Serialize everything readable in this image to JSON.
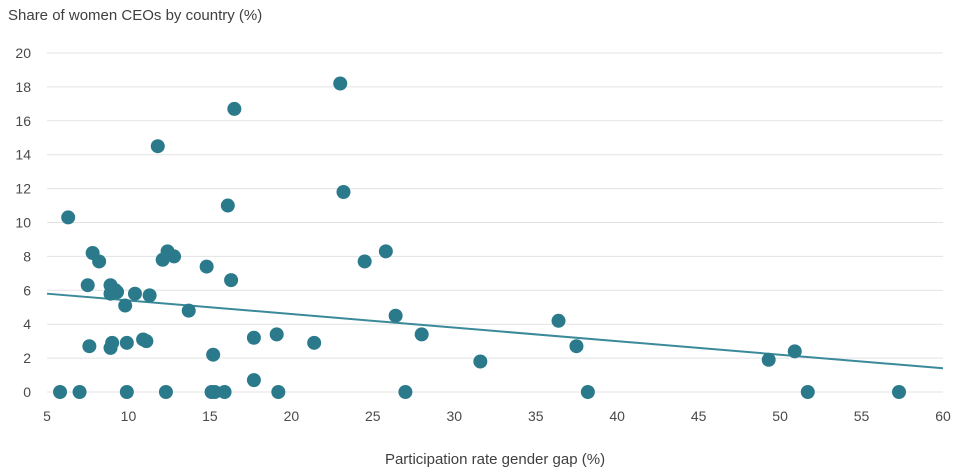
{
  "chart_data": {
    "type": "scatter",
    "title": "",
    "ylabel": "Share of women CEOs by country (%)",
    "xlabel": "Participation rate gender gap (%)",
    "xlim": [
      5,
      60
    ],
    "ylim": [
      0,
      20
    ],
    "xticks": [
      5,
      10,
      15,
      20,
      25,
      30,
      35,
      40,
      45,
      50,
      55,
      60
    ],
    "yticks": [
      0,
      2,
      4,
      6,
      8,
      10,
      12,
      14,
      16,
      18,
      20
    ],
    "grid": "horizontal",
    "legend": "none",
    "colors": {
      "points": "#2b7a8c",
      "trendline": "#3a8a99",
      "grid": "#e3e3e3"
    },
    "series": [
      {
        "points": [
          [
            5.8,
            0.0
          ],
          [
            7.0,
            0.0
          ],
          [
            9.9,
            0.0
          ],
          [
            12.3,
            0.0
          ],
          [
            15.1,
            0.0
          ],
          [
            15.3,
            0.0
          ],
          [
            15.9,
            0.0
          ],
          [
            19.2,
            0.0
          ],
          [
            27.0,
            0.0
          ],
          [
            38.2,
            0.0
          ],
          [
            51.7,
            0.0
          ],
          [
            57.3,
            0.0
          ],
          [
            6.3,
            10.3
          ],
          [
            7.5,
            6.3
          ],
          [
            7.6,
            2.7
          ],
          [
            7.8,
            8.2
          ],
          [
            8.2,
            7.7
          ],
          [
            8.9,
            6.3
          ],
          [
            8.9,
            5.8
          ],
          [
            8.9,
            2.6
          ],
          [
            9.0,
            2.9
          ],
          [
            9.2,
            6.0
          ],
          [
            9.3,
            5.9
          ],
          [
            9.8,
            5.1
          ],
          [
            9.9,
            2.9
          ],
          [
            10.4,
            5.8
          ],
          [
            10.9,
            3.1
          ],
          [
            11.1,
            3.0
          ],
          [
            11.3,
            5.7
          ],
          [
            11.8,
            14.5
          ],
          [
            12.1,
            7.8
          ],
          [
            12.4,
            8.3
          ],
          [
            12.8,
            8.0
          ],
          [
            13.7,
            4.8
          ],
          [
            14.8,
            7.4
          ],
          [
            15.2,
            2.2
          ],
          [
            16.1,
            11.0
          ],
          [
            16.3,
            6.6
          ],
          [
            16.5,
            16.7
          ],
          [
            17.7,
            3.2
          ],
          [
            17.7,
            0.7
          ],
          [
            19.1,
            3.4
          ],
          [
            21.4,
            2.9
          ],
          [
            23.0,
            18.2
          ],
          [
            23.2,
            11.8
          ],
          [
            24.5,
            7.7
          ],
          [
            25.8,
            8.3
          ],
          [
            26.4,
            4.5
          ],
          [
            28.0,
            3.4
          ],
          [
            31.6,
            1.8
          ],
          [
            36.4,
            4.2
          ],
          [
            37.5,
            2.7
          ],
          [
            49.3,
            1.9
          ],
          [
            50.9,
            2.4
          ]
        ]
      }
    ],
    "trendline": {
      "type": "linear",
      "x": [
        5,
        60
      ],
      "y": [
        5.8,
        1.4
      ]
    }
  }
}
